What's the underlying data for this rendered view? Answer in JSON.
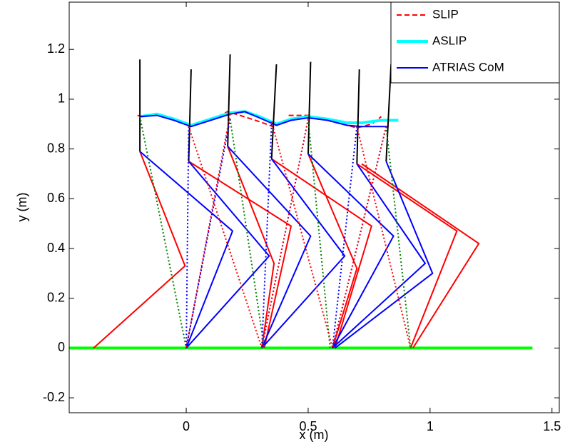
{
  "chart_data": {
    "type": "line",
    "xlabel": "x (m)",
    "ylabel": "y (m)",
    "xlim": [
      -0.48,
      1.53
    ],
    "ylim": [
      -0.26,
      1.39
    ],
    "xticks": [
      0,
      0.5,
      1,
      1.5
    ],
    "yticks": [
      -0.2,
      0,
      0.2,
      0.4,
      0.6,
      0.8,
      1,
      1.2
    ],
    "grid": false,
    "legend": "upper right",
    "series": [
      {
        "name": "SLIP",
        "color": "#ff0000",
        "style": "dashed",
        "x": [
          -0.2,
          -0.18,
          null,
          0.13,
          0.17,
          0.22,
          0.3,
          0.37,
          null,
          0.42,
          0.5,
          0.6,
          0.7,
          0.76,
          0.8
        ],
        "y": [
          0.935,
          0.93,
          null,
          0.93,
          0.95,
          0.935,
          0.91,
          0.885,
          null,
          0.935,
          0.935,
          0.91,
          0.885,
          0.9,
          0.93
        ]
      },
      {
        "name": "ASLIP",
        "color": "#00ffff",
        "style": "thick",
        "x": [
          -0.19,
          -0.12,
          -0.05,
          0.02,
          0.1,
          0.18,
          0.24,
          0.3,
          0.37,
          0.43,
          0.5,
          0.58,
          0.66,
          0.72,
          0.8,
          0.87
        ],
        "y": [
          0.93,
          0.94,
          0.92,
          0.895,
          0.92,
          0.945,
          0.95,
          0.93,
          0.9,
          0.92,
          0.93,
          0.92,
          0.905,
          0.905,
          0.915,
          0.915
        ]
      },
      {
        "name": "ATRIAS CoM",
        "color": "#0000ff",
        "style": "solid",
        "x": [
          -0.19,
          -0.12,
          -0.05,
          0.02,
          0.1,
          0.18,
          0.24,
          0.3,
          0.37,
          0.43,
          0.5,
          0.58,
          0.66,
          0.72,
          0.8,
          0.83
        ],
        "y": [
          0.93,
          0.935,
          0.915,
          0.89,
          0.915,
          0.94,
          0.95,
          0.925,
          0.895,
          0.915,
          0.925,
          0.915,
          0.895,
          0.89,
          0.89,
          0.89
        ]
      },
      {
        "color": "#00ff00",
        "style": "thick",
        "x": [
          -0.48,
          1.42
        ],
        "y": [
          0,
          0
        ]
      },
      {
        "color": "#000000",
        "style": "solid",
        "x": [
          -0.19,
          -0.19,
          null,
          0.02,
          0.01,
          null,
          0.18,
          0.17,
          null,
          0.37,
          0.35,
          null,
          0.51,
          0.5,
          null,
          0.71,
          0.7,
          null,
          0.84,
          0.82
        ],
        "y": [
          1.16,
          0.79,
          null,
          1.12,
          0.75,
          null,
          1.18,
          0.81,
          null,
          1.14,
          0.76,
          null,
          1.15,
          0.78,
          null,
          1.12,
          0.74,
          null,
          1.14,
          0.75
        ]
      },
      {
        "color": "#ff0000",
        "style": "solid",
        "x": [
          -0.19,
          -0.005,
          -0.38,
          null,
          0.01,
          0.43,
          0.32,
          null,
          0.17,
          0.36,
          0.31,
          null,
          0.35,
          0.76,
          0.61,
          null,
          0.5,
          0.7,
          0.6,
          null,
          0.7,
          1.11,
          0.92,
          null,
          0.72,
          1.2,
          0.93
        ],
        "y": [
          0.79,
          0.33,
          0,
          null,
          0.75,
          0.49,
          0,
          null,
          0.81,
          0.34,
          0,
          null,
          0.76,
          0.49,
          0,
          null,
          0.78,
          0.32,
          0,
          null,
          0.74,
          0.47,
          0,
          null,
          0.74,
          0.42,
          0
        ]
      },
      {
        "color": "#0000ff",
        "style": "solid",
        "x": [
          -0.19,
          0.19,
          0,
          null,
          0.01,
          0.34,
          0,
          null,
          0.17,
          0.51,
          0.31,
          null,
          0.35,
          0.65,
          0.31,
          null,
          0.5,
          0.85,
          0.6,
          null,
          0.7,
          0.98,
          0.6,
          null,
          0.82,
          1.01,
          0.61
        ],
        "y": [
          0.79,
          0.47,
          0,
          null,
          0.75,
          0.37,
          0,
          null,
          0.81,
          0.45,
          0,
          null,
          0.76,
          0.37,
          0,
          null,
          0.78,
          0.45,
          0,
          null,
          0.74,
          0.34,
          0,
          null,
          0.75,
          0.3,
          0
        ]
      },
      {
        "color": "#008000",
        "style": "dotted",
        "x": [
          -0.19,
          0,
          null,
          0.18,
          0.32,
          null,
          0.5,
          0.59,
          null,
          0.82,
          0.92
        ],
        "y": [
          0.93,
          0,
          null,
          0.92,
          0,
          null,
          0.92,
          0,
          null,
          0.89,
          0
        ]
      },
      {
        "color": "#0000ff",
        "style": "dotted",
        "x": [
          0.01,
          0,
          null,
          0.18,
          0,
          null,
          0.35,
          0.31,
          null,
          0.5,
          0.31,
          null,
          0.7,
          0.6,
          null,
          0.82,
          0.6
        ],
        "y": [
          0.89,
          0,
          null,
          0.92,
          0,
          null,
          0.9,
          0,
          null,
          0.92,
          0,
          null,
          0.89,
          0,
          null,
          0.89,
          0
        ]
      },
      {
        "color": "#ff0000",
        "style": "dotted",
        "x": [
          0.01,
          0.31,
          null,
          0.18,
          0,
          null,
          0.35,
          0.6,
          null,
          0.5,
          0.31,
          null,
          0.7,
          0.92,
          null,
          0.82,
          0.6
        ],
        "y": [
          0.89,
          0,
          null,
          0.94,
          0,
          null,
          0.91,
          0,
          null,
          0.92,
          0,
          null,
          0.89,
          0,
          null,
          0.89,
          0
        ]
      }
    ]
  }
}
